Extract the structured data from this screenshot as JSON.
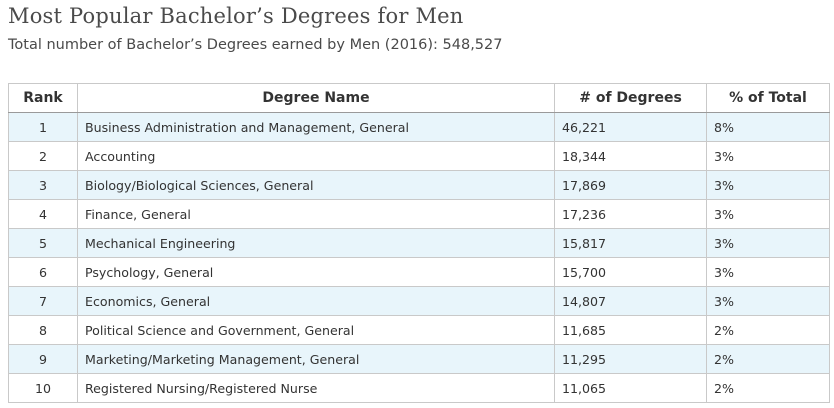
{
  "title": "Most Popular Bachelor’s Degrees for Men",
  "subtitle": "Total number of Bachelor’s Degrees earned by Men (2016): 548,527",
  "table": {
    "headers": {
      "rank": "Rank",
      "degree": "Degree Name",
      "count": "# of Degrees",
      "percent": "% of Total"
    },
    "rows": [
      {
        "rank": "1",
        "degree": "Business Administration and Management, General",
        "count": "46,221",
        "percent": "8%"
      },
      {
        "rank": "2",
        "degree": "Accounting",
        "count": "18,344",
        "percent": "3%"
      },
      {
        "rank": "3",
        "degree": "Biology/Biological Sciences, General",
        "count": "17,869",
        "percent": "3%"
      },
      {
        "rank": "4",
        "degree": "Finance, General",
        "count": "17,236",
        "percent": "3%"
      },
      {
        "rank": "5",
        "degree": "Mechanical Engineering",
        "count": "15,817",
        "percent": "3%"
      },
      {
        "rank": "6",
        "degree": "Psychology, General",
        "count": "15,700",
        "percent": "3%"
      },
      {
        "rank": "7",
        "degree": "Economics, General",
        "count": "14,807",
        "percent": "3%"
      },
      {
        "rank": "8",
        "degree": "Political Science and Government, General",
        "count": "11,685",
        "percent": "2%"
      },
      {
        "rank": "9",
        "degree": "Marketing/Marketing Management, General",
        "count": "11,295",
        "percent": "2%"
      },
      {
        "rank": "10",
        "degree": "Registered Nursing/Registered Nurse",
        "count": "11,065",
        "percent": "2%"
      }
    ]
  }
}
